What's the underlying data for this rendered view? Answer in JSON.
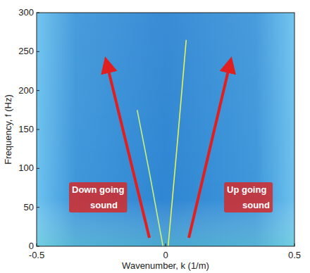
{
  "chart_data": {
    "type": "line",
    "x_label": "Wavenumber, k (1/m)",
    "y_label": "Frequency, f (Hz)",
    "xlim": [
      -0.5,
      0.5
    ],
    "xticks": [
      -0.5,
      0,
      0.5
    ],
    "ylim": [
      0,
      300
    ],
    "yticks": [
      0,
      50,
      100,
      150,
      200,
      250,
      300
    ],
    "series": [
      {
        "color": "#c8f07a",
        "x": [
          -0.01,
          -0.06,
          -0.11
        ],
        "values": [
          0,
          90,
          175
        ]
      },
      {
        "color": "#e6f25a",
        "x": [
          0.01,
          0.045,
          0.08
        ],
        "values": [
          0,
          130,
          265
        ]
      }
    ],
    "annotations": [
      "Down going sound",
      "Up going sound"
    ]
  }
}
